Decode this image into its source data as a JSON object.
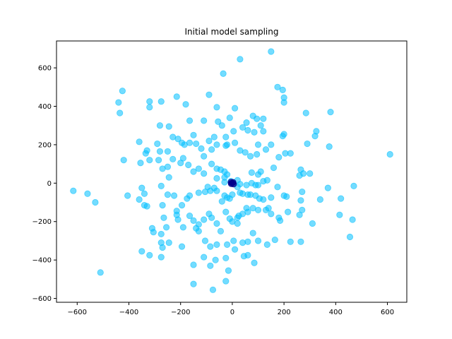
{
  "chart_data": {
    "type": "scatter",
    "title": "Initial model sampling",
    "xlabel": "",
    "ylabel": "",
    "xlim": [
      -680,
      675
    ],
    "ylim": [
      -620,
      740
    ],
    "xticks": [
      -600,
      -400,
      -200,
      0,
      200,
      400,
      600
    ],
    "yticks": [
      -600,
      -400,
      -200,
      0,
      200,
      400,
      600
    ],
    "grid": false,
    "colors": {
      "points": "#00BFFF",
      "center": "#00008B"
    },
    "series": [
      {
        "points": [
          [
            150,
            685
          ],
          [
            30,
            645
          ],
          [
            -35,
            570
          ],
          [
            175,
            500
          ],
          [
            195,
            485
          ],
          [
            200,
            445
          ],
          [
            -425,
            480
          ],
          [
            -440,
            420
          ],
          [
            -435,
            365
          ],
          [
            -320,
            425
          ],
          [
            -320,
            395
          ],
          [
            -275,
            425
          ],
          [
            -215,
            450
          ],
          [
            -180,
            410
          ],
          [
            -90,
            460
          ],
          [
            -60,
            395
          ],
          [
            10,
            390
          ],
          [
            200,
            420
          ],
          [
            380,
            370
          ],
          [
            285,
            365
          ],
          [
            -165,
            325
          ],
          [
            -110,
            325
          ],
          [
            -55,
            320
          ],
          [
            -10,
            340
          ],
          [
            40,
            290
          ],
          [
            55,
            315
          ],
          [
            80,
            350
          ],
          [
            95,
            335
          ],
          [
            120,
            335
          ],
          [
            110,
            300
          ],
          [
            60,
            275
          ],
          [
            85,
            265
          ],
          [
            120,
            270
          ],
          [
            200,
            255
          ],
          [
            195,
            245
          ],
          [
            325,
            270
          ],
          [
            320,
            245
          ],
          [
            -280,
            300
          ],
          [
            -245,
            295
          ],
          [
            -230,
            240
          ],
          [
            -210,
            230
          ],
          [
            -150,
            250
          ],
          [
            -40,
            300
          ],
          [
            5,
            270
          ],
          [
            -25,
            240
          ],
          [
            -60,
            200
          ],
          [
            -20,
            200
          ],
          [
            -80,
            175
          ],
          [
            -290,
            205
          ],
          [
            -280,
            165
          ],
          [
            -250,
            165
          ],
          [
            -230,
            125
          ],
          [
            -195,
            210
          ],
          [
            -185,
            200
          ],
          [
            -165,
            210
          ],
          [
            -140,
            205
          ],
          [
            -120,
            180
          ],
          [
            -110,
            140
          ],
          [
            -90,
            220
          ],
          [
            -70,
            240
          ],
          [
            -25,
            195
          ],
          [
            10,
            210
          ],
          [
            30,
            170
          ],
          [
            50,
            160
          ],
          [
            70,
            140
          ],
          [
            95,
            150
          ],
          [
            100,
            200
          ],
          [
            130,
            175
          ],
          [
            150,
            200
          ],
          [
            205,
            155
          ],
          [
            225,
            155
          ],
          [
            290,
            205
          ],
          [
            375,
            190
          ],
          [
            -360,
            215
          ],
          [
            -335,
            155
          ],
          [
            -330,
            170
          ],
          [
            -320,
            120
          ],
          [
            -355,
            105
          ],
          [
            -420,
            120
          ],
          [
            -285,
            120
          ],
          [
            -270,
            75
          ],
          [
            -250,
            85
          ],
          [
            -245,
            30
          ],
          [
            -200,
            105
          ],
          [
            -190,
            130
          ],
          [
            -170,
            95
          ],
          [
            -150,
            60
          ],
          [
            -130,
            75
          ],
          [
            -110,
            50
          ],
          [
            -80,
            100
          ],
          [
            -60,
            75
          ],
          [
            -45,
            70
          ],
          [
            -30,
            60
          ],
          [
            -30,
            30
          ],
          [
            -20,
            45
          ],
          [
            -60,
            25
          ],
          [
            -30,
            5
          ],
          [
            -5,
            10
          ],
          [
            20,
            15
          ],
          [
            75,
            55
          ],
          [
            100,
            45
          ],
          [
            110,
            60
          ],
          [
            160,
            80
          ],
          [
            180,
            135
          ],
          [
            265,
            70
          ],
          [
            275,
            50
          ],
          [
            300,
            50
          ],
          [
            260,
            40
          ],
          [
            30,
            -5
          ],
          [
            55,
            -10
          ],
          [
            75,
            0
          ],
          [
            90,
            -10
          ],
          [
            100,
            -10
          ],
          [
            120,
            10
          ],
          [
            135,
            15
          ],
          [
            175,
            -20
          ],
          [
            200,
            -65
          ],
          [
            210,
            -70
          ],
          [
            270,
            -45
          ],
          [
            265,
            -90
          ],
          [
            370,
            -25
          ],
          [
            340,
            -85
          ],
          [
            420,
            -80
          ],
          [
            470,
            -15
          ],
          [
            610,
            150
          ],
          [
            -615,
            -40
          ],
          [
            -560,
            -55
          ],
          [
            -530,
            -100
          ],
          [
            -510,
            -465
          ],
          [
            -405,
            -65
          ],
          [
            -360,
            -85
          ],
          [
            -350,
            -25
          ],
          [
            -340,
            -115
          ],
          [
            -330,
            -120
          ],
          [
            -340,
            -55
          ],
          [
            -275,
            -15
          ],
          [
            -270,
            -115
          ],
          [
            -250,
            -60
          ],
          [
            -225,
            -65
          ],
          [
            -215,
            -145
          ],
          [
            -195,
            -115
          ],
          [
            -175,
            -80
          ],
          [
            -165,
            -65
          ],
          [
            -130,
            -50
          ],
          [
            -105,
            -45
          ],
          [
            -95,
            -20
          ],
          [
            -85,
            -40
          ],
          [
            -70,
            -25
          ],
          [
            -60,
            -40
          ],
          [
            -40,
            -95
          ],
          [
            -30,
            -65
          ],
          [
            -20,
            -75
          ],
          [
            -10,
            -80
          ],
          [
            0,
            -60
          ],
          [
            20,
            -20
          ],
          [
            30,
            -50
          ],
          [
            40,
            -55
          ],
          [
            60,
            -60
          ],
          [
            70,
            -60
          ],
          [
            90,
            -65
          ],
          [
            105,
            -80
          ],
          [
            120,
            -85
          ],
          [
            150,
            -75
          ],
          [
            55,
            -130
          ],
          [
            20,
            -180
          ],
          [
            40,
            -160
          ],
          [
            60,
            -150
          ],
          [
            80,
            -130
          ],
          [
            100,
            -140
          ],
          [
            130,
            -140
          ],
          [
            140,
            -130
          ],
          [
            150,
            -160
          ],
          [
            180,
            -180
          ],
          [
            215,
            -150
          ],
          [
            260,
            -165
          ],
          [
            270,
            -140
          ],
          [
            310,
            -210
          ],
          [
            -310,
            -235
          ],
          [
            -305,
            -255
          ],
          [
            -275,
            -265
          ],
          [
            -275,
            -310
          ],
          [
            -265,
            -180
          ],
          [
            -255,
            -230
          ],
          [
            -215,
            -165
          ],
          [
            -210,
            -190
          ],
          [
            -190,
            -230
          ],
          [
            -165,
            -170
          ],
          [
            -150,
            -195
          ],
          [
            -130,
            -215
          ],
          [
            -110,
            -190
          ],
          [
            -90,
            -160
          ],
          [
            -80,
            -180
          ],
          [
            -60,
            -210
          ],
          [
            -45,
            -250
          ],
          [
            -25,
            -150
          ],
          [
            -10,
            -185
          ],
          [
            0,
            -200
          ],
          [
            20,
            -210
          ],
          [
            25,
            -170
          ],
          [
            -140,
            -235
          ],
          [
            -130,
            -250
          ],
          [
            -105,
            -300
          ],
          [
            -85,
            -330
          ],
          [
            -60,
            -320
          ],
          [
            -20,
            -320
          ],
          [
            40,
            -310
          ],
          [
            60,
            -305
          ],
          [
            80,
            -260
          ],
          [
            100,
            -300
          ],
          [
            135,
            -320
          ],
          [
            165,
            -295
          ],
          [
            185,
            -195
          ],
          [
            225,
            -305
          ],
          [
            265,
            -305
          ],
          [
            415,
            -165
          ],
          [
            465,
            -190
          ],
          [
            455,
            -280
          ],
          [
            -350,
            -355
          ],
          [
            -320,
            -375
          ],
          [
            -275,
            -385
          ],
          [
            -270,
            -335
          ],
          [
            -245,
            -310
          ],
          [
            -195,
            -330
          ],
          [
            -150,
            -425
          ],
          [
            -110,
            -385
          ],
          [
            -85,
            -430
          ],
          [
            -65,
            -400
          ],
          [
            -25,
            -390
          ],
          [
            -15,
            -455
          ],
          [
            5,
            -300
          ],
          [
            10,
            -345
          ],
          [
            45,
            -380
          ],
          [
            60,
            -375
          ],
          [
            85,
            -415
          ],
          [
            -150,
            -525
          ],
          [
            -75,
            -555
          ],
          [
            -25,
            -510
          ]
        ]
      },
      {
        "points": [
          [
            0,
            0
          ],
          [
            -5,
            5
          ],
          [
            5,
            -5
          ],
          [
            3,
            4
          ],
          [
            -4,
            -3
          ]
        ]
      }
    ]
  }
}
